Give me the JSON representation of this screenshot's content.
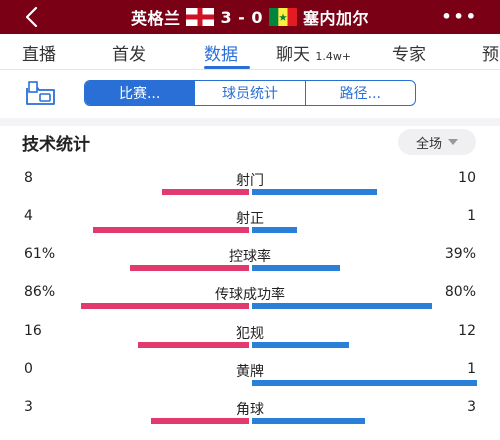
{
  "header": {
    "home_team": "英格兰",
    "score": "3 - 0",
    "away_team": "塞内加尔",
    "more": "•••",
    "icons": {
      "back": "back-chevron-icon",
      "home_flag": "england-flag-icon",
      "away_flag": "senegal-flag-icon"
    }
  },
  "tabs": [
    {
      "label": "直播"
    },
    {
      "label": "首发"
    },
    {
      "label": "数据"
    },
    {
      "label": "聊天",
      "badge": "1.4w+"
    },
    {
      "label": "专家"
    },
    {
      "label": "预"
    }
  ],
  "active_tab": "数据",
  "subtabs": {
    "icon": "folder-share-icon",
    "items": [
      {
        "label": "比赛..."
      },
      {
        "label": "球员统计"
      },
      {
        "label": "路径..."
      }
    ],
    "active": "比赛..."
  },
  "stats": {
    "title": "技术统计",
    "scope": "全场",
    "rows": [
      {
        "name": "射门",
        "left": "8",
        "right": "10",
        "left_frac": 0.444,
        "right_frac": 0.556
      },
      {
        "name": "射正",
        "left": "4",
        "right": "1",
        "left_frac": 0.8,
        "right_frac": 0.2
      },
      {
        "name": "控球率",
        "left": "61%",
        "right": "39%",
        "left_frac": 0.61,
        "right_frac": 0.39
      },
      {
        "name": "传球成功率",
        "left": "86%",
        "right": "80%",
        "left_frac": 0.86,
        "right_frac": 0.8
      },
      {
        "name": "犯规",
        "left": "16",
        "right": "12",
        "left_frac": 0.571,
        "right_frac": 0.429
      },
      {
        "name": "黄牌",
        "left": "0",
        "right": "1",
        "left_frac": 0.0,
        "right_frac": 1.0
      },
      {
        "name": "角球",
        "left": "3",
        "right": "3",
        "left_frac": 0.5,
        "right_frac": 0.5
      }
    ]
  },
  "colors": {
    "header_bg": "#7a0016",
    "accent": "#2a6fd6",
    "home_bar": "#e23a6e",
    "away_bar": "#2a7fd9"
  }
}
